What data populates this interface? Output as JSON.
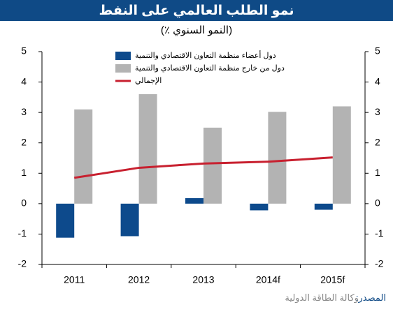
{
  "chart_data": {
    "type": "bar",
    "title": "نمو الطلب العالمي على النفط",
    "subtitle": "(٪ النمو السنوي)",
    "categories": [
      "2011",
      "2012",
      "2013",
      "2014f",
      "2015f"
    ],
    "series": [
      {
        "name": "دول أعضاء منظمة التعاون الاقتصادي والتنمية",
        "color": "#0d4a8c",
        "kind": "bar",
        "values": [
          -1.12,
          -1.07,
          0.18,
          -0.22,
          -0.2
        ]
      },
      {
        "name": "دول من خارج منظمة التعاون الاقتصادي والتنمية",
        "color": "#b3b3b3",
        "kind": "bar",
        "values": [
          3.1,
          3.6,
          2.5,
          3.02,
          3.2
        ]
      },
      {
        "name": "الإجمالي",
        "color": "#c8202f",
        "kind": "line",
        "values": [
          0.85,
          1.18,
          1.32,
          1.38,
          1.52
        ]
      }
    ],
    "ylim": [
      -2,
      5
    ],
    "yticks": [
      -2,
      -1,
      0,
      1,
      2,
      3,
      4,
      5
    ],
    "y2lim": [
      -2,
      5
    ],
    "y2ticks": [
      -2,
      -1,
      0,
      1,
      2,
      3,
      4,
      5
    ],
    "legend": "top",
    "source_label": "المصدر:",
    "source_text": "وكالة الطاقة الدولية"
  }
}
